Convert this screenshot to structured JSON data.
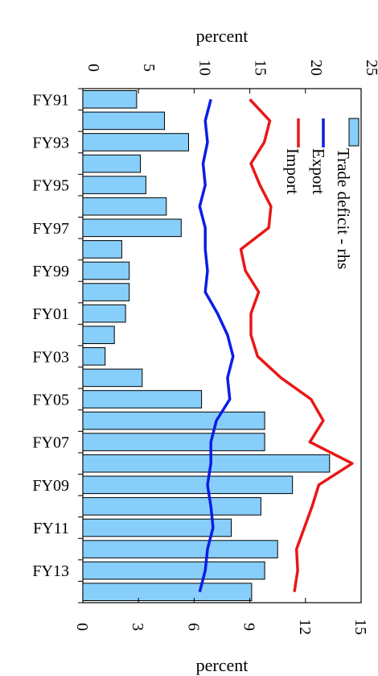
{
  "chart_data": {
    "type": "bar",
    "orientation": "rotated-90-clockwise",
    "categories": [
      "FY91",
      "FY92",
      "FY93",
      "FY94",
      "FY95",
      "FY96",
      "FY97",
      "FY98",
      "FY99",
      "FY00",
      "FY01",
      "FY02",
      "FY03",
      "FY04",
      "FY05",
      "FY06",
      "FY07",
      "FY08",
      "FY09",
      "FY10",
      "FY11",
      "FY12",
      "FY13",
      "FY14"
    ],
    "category_tick_labels": [
      "FY91",
      "FY93",
      "FY95",
      "FY97",
      "FY99",
      "FY01",
      "FY03",
      "FY05",
      "FY07",
      "FY09",
      "FY11",
      "FY13"
    ],
    "series": [
      {
        "name": "Trade deficit - rhs",
        "kind": "bar",
        "axis": "right",
        "color": "#87cefa",
        "values": [
          2.9,
          4.4,
          5.7,
          3.1,
          3.4,
          4.5,
          5.3,
          2.1,
          2.5,
          2.5,
          2.3,
          1.7,
          1.2,
          3.2,
          6.4,
          9.8,
          9.8,
          13.3,
          11.3,
          9.6,
          8.0,
          10.5,
          9.8,
          9.1
        ]
      },
      {
        "name": "Export",
        "kind": "line",
        "axis": "left",
        "color": "#0a1ee6",
        "values": [
          11.5,
          11.0,
          11.2,
          10.8,
          11.0,
          10.5,
          11.0,
          11.0,
          11.2,
          11.0,
          12.1,
          13.0,
          13.5,
          13.0,
          13.2,
          12.0,
          11.5,
          11.5,
          11.2,
          11.5,
          11.7,
          11.2,
          11.0,
          10.5
        ]
      },
      {
        "name": "Import",
        "kind": "line",
        "axis": "left",
        "color": "#e81818",
        "values": [
          15.0,
          16.8,
          16.3,
          15.1,
          15.9,
          16.9,
          16.7,
          14.2,
          14.6,
          15.8,
          15.1,
          15.1,
          15.7,
          17.8,
          20.5,
          21.6,
          20.4,
          24.2,
          21.2,
          20.6,
          19.9,
          19.2,
          19.3,
          19.0
        ]
      }
    ],
    "left_axis": {
      "title": "percent",
      "ticks": [
        0,
        5,
        10,
        15,
        20,
        25
      ],
      "range": [
        0,
        25
      ]
    },
    "right_axis": {
      "title": "percent",
      "ticks": [
        0,
        3,
        6,
        9,
        12,
        15
      ],
      "range": [
        0,
        15
      ]
    },
    "legend": [
      "Trade deficit - rhs",
      "Export",
      "Import"
    ],
    "legend_position": "top-right",
    "grid": false
  }
}
